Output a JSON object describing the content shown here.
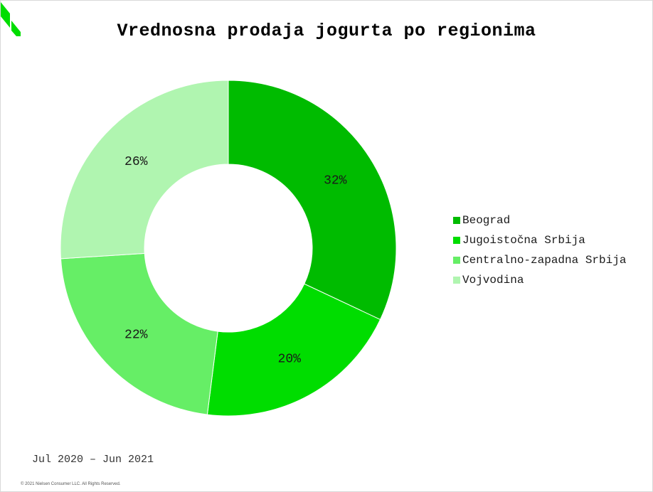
{
  "chart_data": {
    "type": "pie",
    "variant": "donut",
    "title": "Vrednosna prodaja jogurta po regionima",
    "categories": [
      "Beograd",
      "Jugoistočna Srbija",
      "Centralno-zapadna Srbija",
      "Vojvodina"
    ],
    "values": [
      32,
      20,
      22,
      26
    ],
    "labels": [
      "32%",
      "20%",
      "22%",
      "26%"
    ],
    "colors": [
      "#00bb00",
      "#00dd00",
      "#66ee66",
      "#b0f5b0"
    ],
    "legend_position": "right"
  },
  "period": "Jul 2020 – Jun 2021",
  "copyright": "© 2021 Nielsen Consumer LLC. All Rights Reserved.",
  "logo": {
    "icon": "nielsen-logo-icon",
    "color": "#00dd00"
  }
}
